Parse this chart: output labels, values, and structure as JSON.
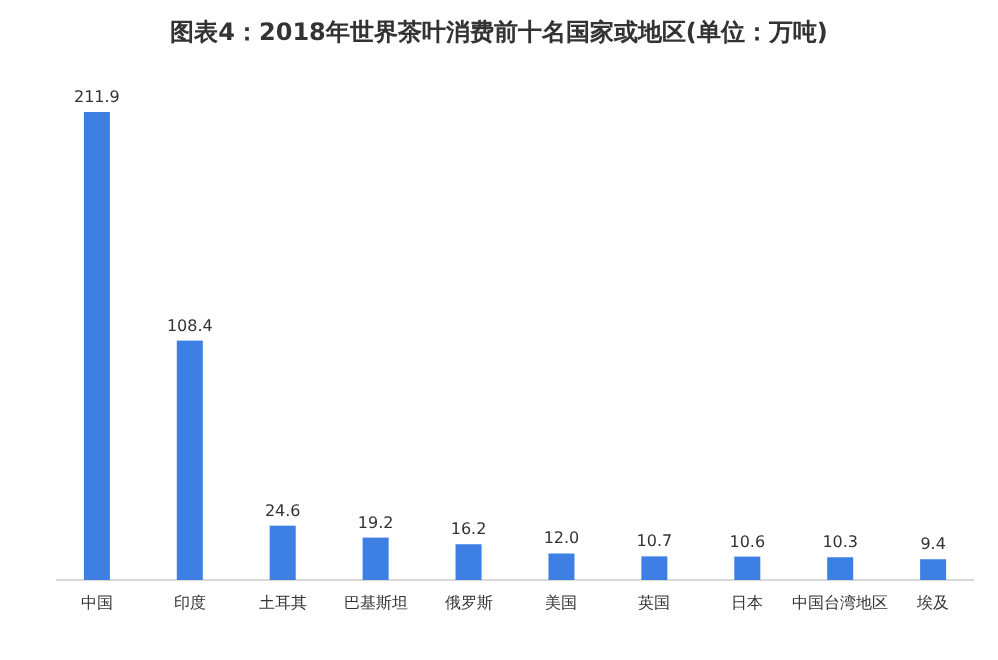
{
  "chart_data": {
    "type": "bar",
    "title": "图表4：2018年世界茶叶消费前十名国家或地区(单位：万吨)",
    "categories": [
      "中国",
      "印度",
      "土耳其",
      "巴基斯坦",
      "俄罗斯",
      "美国",
      "英国",
      "日本",
      "中国台湾地区",
      "埃及"
    ],
    "values": [
      211.9,
      108.4,
      24.6,
      19.2,
      16.2,
      12.0,
      10.7,
      10.6,
      10.3,
      9.4
    ],
    "value_labels": [
      "211.9",
      "108.4",
      "24.6",
      "19.2",
      "16.2",
      "12.0",
      "10.7",
      "10.6",
      "10.3",
      "9.4"
    ],
    "color": "#3d7fe3"
  }
}
